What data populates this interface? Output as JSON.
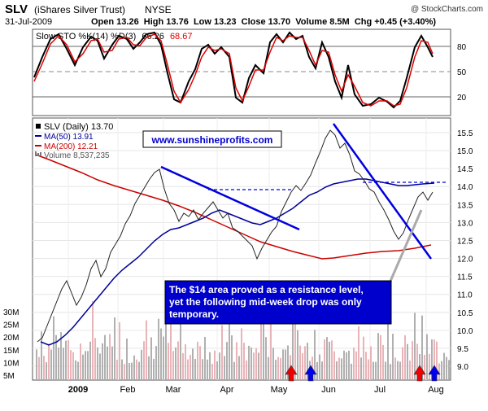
{
  "header": {
    "symbol": "SLV",
    "name": "(iShares Silver Trust)",
    "exchange": "NYSE",
    "copyright": "@ StockCharts.com",
    "date": "31-Jul-2009",
    "ohlc": "Open 13.26  High 13.76  Low 13.23  Close 13.70  Volume 8.5M  Chg +0.45 (+3.40%)"
  },
  "stoch_panel": {
    "label_prefix": "Slow STO %K(14) %D(3)",
    "k_value": "66.26",
    "d_value": "68.67",
    "levels": [
      80,
      50,
      20
    ],
    "colors": {
      "k": "#000000",
      "d": "#dd0000"
    }
  },
  "price_panel": {
    "legend": [
      {
        "text": "SLV (Daily) 13.70",
        "color": "#000000",
        "icon": "square-icon"
      },
      {
        "text": "MA(50) 13.91",
        "color": "#000099",
        "icon": "line-icon"
      },
      {
        "text": "MA(200) 12.21",
        "color": "#cc0000",
        "icon": "line-icon"
      },
      {
        "text": "Volume 8,537,235",
        "color": "#555555",
        "icon": "bars-icon"
      }
    ],
    "watermark": "www.sunshineprofits.com",
    "annotation": "The $14 area proved as a resistance level, yet the following mid-week drop was only temporary.",
    "price_ticks": [
      "15.5",
      "15.0",
      "14.5",
      "14.0",
      "13.5",
      "13.0",
      "12.5",
      "12.0",
      "11.5",
      "11.0",
      "10.5",
      "10.0",
      "9.5",
      "9.0"
    ],
    "volume_ticks": [
      "30M",
      "25M",
      "20M",
      "15M",
      "10M",
      "5M"
    ],
    "month_labels": [
      "2009",
      "Feb",
      "Mar",
      "Apr",
      "May",
      "Jun",
      "Jul",
      "Aug"
    ],
    "arrow_colors": {
      "up_red": "#ee0000",
      "up_blue": "#0000ee"
    }
  },
  "chart_data": {
    "type": "line",
    "x_axis": [
      "2009",
      "Feb",
      "Mar",
      "Apr",
      "May",
      "Jun",
      "Jul",
      "Aug"
    ],
    "price_range": [
      9.0,
      15.8
    ],
    "stoch_range": [
      0,
      100
    ],
    "volume_range_millions": [
      0,
      30
    ],
    "series": [
      {
        "name": "SLV (Daily)",
        "values_approx": [
          10.0,
          10.5,
          12.0,
          13.8,
          14.4,
          13.0,
          12.6,
          13.4,
          12.6,
          12.0,
          12.8,
          13.5,
          14.6,
          15.6,
          15.0,
          14.0,
          13.8,
          13.0,
          12.5,
          13.4,
          13.9,
          13.7
        ]
      },
      {
        "name": "MA(50)",
        "last": 13.91
      },
      {
        "name": "MA(200)",
        "last": 12.21
      }
    ],
    "stochastics": {
      "k_last": 66.26,
      "d_last": 68.67
    },
    "last_volume": 8537235
  }
}
